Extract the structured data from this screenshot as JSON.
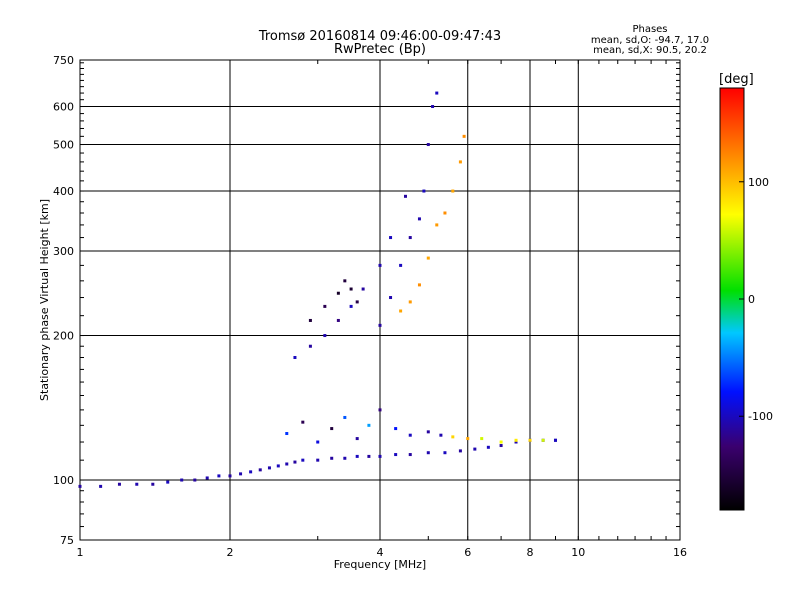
{
  "header": {
    "title_line1": "Tromsø 20160814 09:46:00-09:47:43",
    "title_line2": "RwPretec (Bp)",
    "stats_heading": "Phases",
    "stats_o": "mean, sd,O: -94.7, 17.0",
    "stats_x": "mean, sd,X:  90.5, 20.2"
  },
  "chart_data": {
    "type": "scatter",
    "xlabel": "Frequency [MHz]",
    "ylabel": "Stationary phase Virtual Height [km]",
    "xscale": "log",
    "yscale": "log",
    "xlim": [
      1,
      16
    ],
    "ylim": [
      75,
      750
    ],
    "xticks": [
      1,
      2,
      4,
      6,
      8,
      10,
      16
    ],
    "xtick_labels": [
      "1",
      "2",
      "4",
      "6",
      "8",
      "10",
      "16"
    ],
    "yticks": [
      75,
      100,
      200,
      300,
      400,
      500,
      600,
      750
    ],
    "ytick_labels": [
      "75",
      "100",
      "200",
      "300",
      "400",
      "500",
      "600",
      "750"
    ],
    "grid": true,
    "colorbar": {
      "label": "[deg]",
      "range": [
        -180,
        180
      ],
      "ticks": [
        -100,
        0,
        100
      ],
      "tick_labels": [
        "-100",
        "0",
        "100"
      ]
    },
    "series": [
      {
        "x": [
          1.0,
          1.1,
          1.2,
          1.3,
          1.4,
          1.5,
          1.6,
          1.7,
          1.8,
          1.9,
          2.0,
          2.1,
          2.2,
          2.3,
          2.4,
          2.5,
          2.6,
          2.7,
          2.8,
          3.0,
          3.2,
          3.4,
          3.6,
          3.8,
          4.0,
          4.3,
          4.6,
          5.0,
          5.4,
          5.8,
          6.2,
          6.6,
          7.0,
          7.5,
          8.0,
          8.5,
          9.0
        ],
        "y": [
          97,
          97,
          98,
          98,
          98,
          99,
          100,
          100,
          101,
          102,
          102,
          103,
          104,
          105,
          106,
          107,
          108,
          109,
          110,
          110,
          111,
          111,
          112,
          112,
          112,
          113,
          113,
          114,
          114,
          115,
          116,
          117,
          118,
          120,
          121,
          121,
          121
        ],
        "phase": [
          -110,
          -105,
          -110,
          -105,
          -110,
          -100,
          -105,
          -110,
          -105,
          -100,
          -110,
          -105,
          -100,
          -110,
          -105,
          -100,
          -105,
          -110,
          -100,
          -105,
          -110,
          -105,
          -100,
          -110,
          -105,
          -100,
          -110,
          -105,
          -100,
          -110,
          -105,
          -100,
          -110,
          -105,
          -100,
          -110,
          -105
        ]
      },
      {
        "x": [
          2.6,
          2.8,
          3.0,
          3.2,
          3.4,
          3.6,
          3.8,
          4.0,
          4.3,
          4.6,
          5.0,
          5.3,
          5.6,
          6.0,
          6.4,
          7.0,
          7.5,
          8.0,
          8.5,
          9.0
        ],
        "y": [
          125,
          132,
          120,
          128,
          135,
          122,
          130,
          140,
          128,
          124,
          126,
          124,
          123,
          122,
          122,
          120,
          121,
          121,
          121,
          121
        ],
        "phase": [
          -70,
          -140,
          -90,
          -150,
          -60,
          -110,
          -40,
          -120,
          -80,
          -100,
          -110,
          -105,
          90,
          110,
          60,
          70,
          80,
          90,
          60,
          -100
        ]
      },
      {
        "x": [
          2.7,
          2.9,
          3.1,
          3.3,
          3.5,
          3.7,
          4.0,
          4.2,
          4.5
        ],
        "y": [
          180,
          190,
          200,
          215,
          230,
          250,
          280,
          320,
          390
        ],
        "phase": [
          -100,
          -110,
          -105,
          -120,
          -100,
          -110,
          -105,
          -100,
          -110
        ]
      },
      {
        "x": [
          2.9,
          3.1,
          3.3,
          3.4,
          3.5,
          3.6
        ],
        "y": [
          215,
          230,
          245,
          260,
          250,
          235
        ],
        "phase": [
          -150,
          -140,
          -160,
          -150,
          -155,
          -145
        ]
      },
      {
        "x": [
          4.0,
          4.2,
          4.4,
          4.6,
          4.8,
          4.9,
          5.0,
          5.1,
          5.2
        ],
        "y": [
          210,
          240,
          280,
          320,
          350,
          400,
          500,
          600,
          640
        ],
        "phase": [
          -110,
          -105,
          -100,
          -110,
          -105,
          -100,
          -110,
          -105,
          -100
        ]
      },
      {
        "x": [
          4.4,
          4.6,
          4.8,
          5.0,
          5.2,
          5.4,
          5.6,
          5.8,
          5.9
        ],
        "y": [
          225,
          235,
          255,
          290,
          340,
          360,
          400,
          460,
          520
        ],
        "phase": [
          110,
          115,
          120,
          110,
          115,
          120,
          110,
          115,
          120
        ]
      }
    ]
  }
}
